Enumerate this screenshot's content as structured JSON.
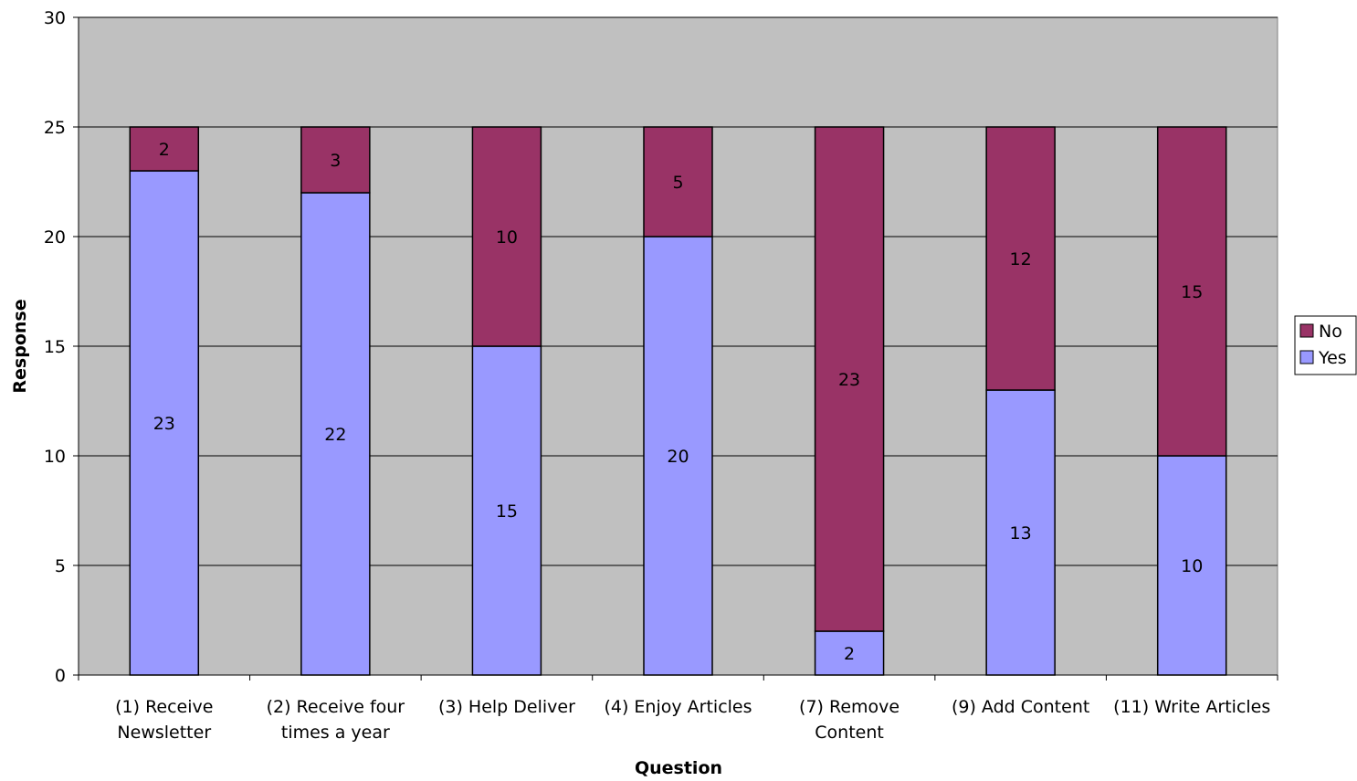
{
  "chart_data": {
    "type": "bar",
    "stacked": true,
    "categories": [
      "(1) Receive Newsletter",
      "(2) Receive four times a year",
      "(3) Help Deliver",
      "(4) Enjoy Articles",
      "(7) Remove Content",
      "(9) Add Content",
      "(11) Write Articles"
    ],
    "category_lines": [
      [
        "(1) Receive",
        "Newsletter"
      ],
      [
        "(2) Receive four",
        "times a year"
      ],
      [
        "(3) Help Deliver"
      ],
      [
        "(4) Enjoy Articles"
      ],
      [
        "(7) Remove",
        "Content"
      ],
      [
        "(9) Add Content"
      ],
      [
        "(11) Write Articles"
      ]
    ],
    "series": [
      {
        "name": "Yes",
        "color": "#9999ff",
        "values": [
          23,
          22,
          15,
          20,
          2,
          13,
          10
        ]
      },
      {
        "name": "No",
        "color": "#993366",
        "values": [
          2,
          3,
          10,
          5,
          23,
          12,
          15
        ]
      }
    ],
    "xlabel": "Question",
    "ylabel": "Response",
    "ylim": [
      0,
      30
    ],
    "yticks": [
      "0",
      "5",
      "10",
      "15",
      "20",
      "25",
      "30"
    ],
    "grid": true,
    "plot_background": "#c0c0c0",
    "legend": {
      "placement": "right",
      "order": [
        "No",
        "Yes"
      ]
    }
  }
}
